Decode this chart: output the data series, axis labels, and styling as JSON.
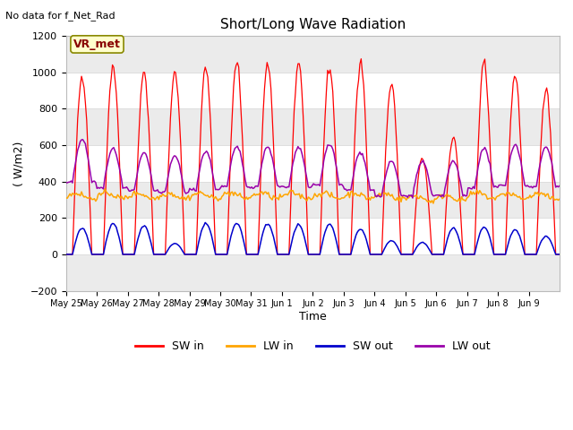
{
  "title": "Short/Long Wave Radiation",
  "xlabel": "Time",
  "ylabel": "( W/m2)",
  "ylim": [
    -200,
    1200
  ],
  "yticks": [
    -200,
    0,
    200,
    400,
    600,
    800,
    1000,
    1200
  ],
  "fig_bg_color": "#ffffff",
  "plot_bg_color": "#ffffff",
  "sw_in_color": "#ff0000",
  "lw_in_color": "#ffa500",
  "sw_out_color": "#0000cc",
  "lw_out_color": "#9900aa",
  "top_left_text": "No data for f_Net_Rad",
  "vr_met_text_color": "#880000",
  "vr_met_box_color": "#cccc00",
  "vr_met_label": "VR_met",
  "n_days": 16,
  "day_labels": [
    "May 25",
    "May 26",
    "May 27",
    "May 28",
    "May 29",
    "May 30",
    "May 31",
    "Jun 1",
    "Jun 2",
    "Jun 3",
    "Jun 4",
    "Jun 5",
    "Jun 6",
    "Jun 7",
    "Jun 8",
    "Jun 9"
  ],
  "sw_in_peaks": [
    980,
    1035,
    1000,
    1005,
    1025,
    1055,
    1050,
    1045,
    1030,
    1055,
    935,
    530,
    645,
    1045,
    990,
    900
  ],
  "lw_out_peaks": [
    630,
    580,
    555,
    540,
    565,
    590,
    590,
    585,
    605,
    560,
    510,
    510,
    510,
    580,
    600,
    590
  ],
  "sw_out_peaks": [
    145,
    170,
    155,
    60,
    170,
    170,
    165,
    160,
    165,
    140,
    75,
    65,
    145,
    150,
    135,
    100
  ],
  "lw_in_base": 320,
  "grid_color": "#dddddd",
  "band_color": "#ebebeb"
}
